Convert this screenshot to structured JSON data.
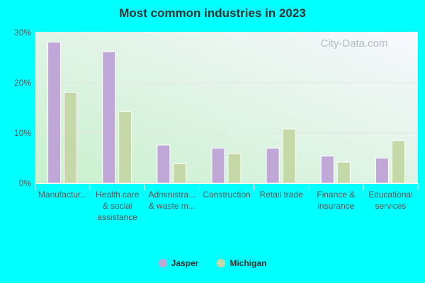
{
  "chart_data": {
    "type": "bar",
    "title": "Most common industries in 2023",
    "categories": [
      [
        "Manufactur..."
      ],
      [
        "Health care",
        "& social",
        "assistance"
      ],
      [
        "Administra...",
        "& waste m..."
      ],
      [
        "Construction"
      ],
      [
        "Retail trade"
      ],
      [
        "Finance &",
        "insurance"
      ],
      [
        "Educational",
        "services"
      ]
    ],
    "series": [
      {
        "name": "Jasper",
        "color": "#bfa8d8",
        "values": [
          28.1,
          26.2,
          7.6,
          7.0,
          7.0,
          5.4,
          5.0
        ]
      },
      {
        "name": "Michigan",
        "color": "#c4d9a7",
        "values": [
          18.1,
          14.3,
          3.9,
          5.9,
          10.8,
          4.2,
          8.5
        ]
      }
    ],
    "yticks": [
      "0%",
      "10%",
      "20%",
      "30%"
    ],
    "ylim": [
      0,
      30
    ],
    "grid": true,
    "legend": "bottom",
    "watermark": "City-Data.com"
  }
}
